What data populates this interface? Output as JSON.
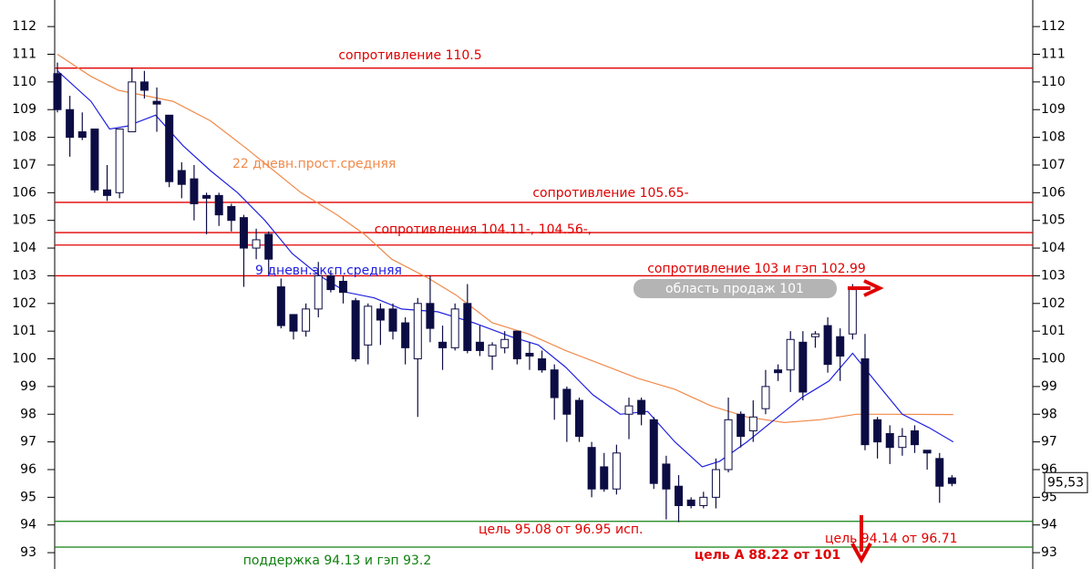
{
  "chart_data": {
    "type": "candlestick",
    "ylim": [
      92.41,
      112.63
    ],
    "xlim": [
      -0.22,
      78.5
    ],
    "yticks": [
      93,
      94,
      95,
      96,
      97,
      98,
      99,
      100,
      101,
      102,
      103,
      104,
      105,
      106,
      107,
      108,
      109,
      110,
      111,
      112
    ],
    "up_color": "#ffffff",
    "down_color": "#0c0c44",
    "open": [
      110.3,
      109.0,
      108.2,
      108.3,
      106.1,
      106.0,
      108.2,
      110.0,
      109.3,
      108.8,
      106.8,
      106.5,
      105.9,
      105.9,
      105.5,
      105.1,
      104.0,
      104.5,
      102.6,
      101.6,
      101.0,
      101.8,
      103.0,
      102.8,
      102.1,
      100.5,
      101.8,
      101.8,
      101.3,
      100.0,
      102.0,
      100.6,
      100.4,
      102.0,
      100.6,
      100.1,
      100.4,
      101.0,
      100.2,
      100.0,
      99.6,
      98.9,
      98.5,
      96.8,
      96.1,
      95.3,
      98.0,
      98.5,
      97.8,
      96.2,
      95.4,
      94.9,
      94.7,
      95.0,
      96.0,
      98.0,
      97.4,
      98.2,
      99.6,
      99.6,
      100.6,
      100.8,
      101.2,
      100.8,
      100.9,
      100.0,
      97.8,
      97.3,
      96.8,
      97.4,
      96.7,
      96.4,
      95.7
    ],
    "high": [
      110.7,
      109.5,
      108.9,
      108.3,
      107.0,
      108.3,
      110.5,
      110.4,
      109.8,
      108.8,
      107.1,
      107.0,
      106.0,
      106.0,
      105.6,
      105.2,
      104.7,
      104.6,
      102.9,
      101.6,
      102.0,
      103.5,
      103.2,
      103.0,
      102.2,
      102.0,
      102.0,
      102.0,
      101.5,
      102.2,
      103.0,
      101.2,
      102.0,
      102.7,
      101.2,
      100.6,
      101.0,
      101.0,
      100.6,
      100.3,
      99.8,
      99.0,
      98.6,
      97.0,
      96.6,
      96.9,
      98.6,
      98.6,
      97.9,
      96.5,
      95.8,
      95.0,
      95.2,
      96.4,
      98.6,
      98.1,
      98.5,
      99.6,
      99.8,
      101.0,
      101.0,
      101.0,
      101.5,
      101.1,
      102.7,
      100.9,
      97.9,
      97.6,
      97.5,
      97.6,
      96.7,
      96.6,
      95.8
    ],
    "low": [
      108.9,
      107.3,
      107.9,
      106.0,
      105.7,
      105.8,
      108.2,
      109.4,
      108.2,
      106.2,
      105.8,
      105.0,
      104.5,
      104.8,
      104.6,
      102.6,
      103.6,
      103.0,
      101.1,
      100.7,
      100.8,
      101.5,
      102.4,
      102.0,
      99.9,
      99.8,
      100.5,
      100.7,
      99.8,
      97.9,
      100.6,
      99.6,
      100.3,
      100.2,
      100.1,
      99.6,
      100.2,
      99.8,
      99.6,
      99.5,
      97.8,
      97.0,
      97.0,
      95.0,
      95.2,
      95.1,
      97.1,
      97.6,
      95.3,
      94.2,
      94.1,
      94.6,
      94.6,
      94.6,
      95.9,
      96.8,
      97.0,
      98.0,
      99.2,
      98.8,
      98.5,
      100.4,
      99.5,
      99.2,
      100.7,
      96.7,
      96.4,
      96.2,
      96.5,
      96.6,
      96.0,
      94.8,
      95.4
    ],
    "close": [
      109.0,
      108.0,
      108.0,
      106.1,
      105.9,
      108.3,
      110.0,
      109.7,
      109.2,
      106.4,
      106.3,
      105.6,
      105.8,
      105.2,
      105.0,
      104.0,
      104.3,
      103.6,
      101.2,
      101.0,
      101.8,
      103.0,
      102.5,
      102.4,
      100.0,
      101.9,
      101.4,
      101.0,
      100.4,
      102.0,
      101.1,
      100.4,
      101.8,
      100.3,
      100.3,
      100.5,
      100.7,
      100.0,
      100.1,
      99.6,
      98.6,
      98.0,
      97.2,
      95.3,
      95.3,
      96.6,
      98.3,
      98.0,
      95.5,
      95.3,
      94.7,
      94.7,
      95.0,
      96.0,
      97.8,
      97.2,
      97.9,
      99.0,
      99.5,
      100.7,
      98.8,
      100.9,
      99.8,
      100.1,
      102.5,
      96.9,
      97.0,
      96.8,
      97.2,
      96.9,
      96.6,
      95.4,
      95.5
    ],
    "series": [
      {
        "name": "22 дневн.прост.средняя",
        "color": "#f08a4b",
        "x": [
          0,
          2.7,
          4.9,
          7.1,
          9.3,
          12.3,
          15.2,
          17.4,
          19.6,
          22.5,
          24.7,
          26.9,
          29.9,
          32.1,
          35,
          37.9,
          40.9,
          43.8,
          46.7,
          49.7,
          52.6,
          55.5,
          58.5,
          61.4,
          64.3,
          67.3,
          72.1
        ],
        "values": [
          111.0,
          110.2,
          109.7,
          109.5,
          109.3,
          108.6,
          107.6,
          106.8,
          106.0,
          105.2,
          104.5,
          103.6,
          102.9,
          102.3,
          101.3,
          100.9,
          100.3,
          99.8,
          99.3,
          98.9,
          98.3,
          97.9,
          97.7,
          97.8,
          98.0,
          98.0,
          97.99
        ]
      },
      {
        "name": "9 дневн.эксп.средняя",
        "color": "#2020e0",
        "x": [
          0,
          2.7,
          4.2,
          5.6,
          7.9,
          10.1,
          12.3,
          14.5,
          16.7,
          18.9,
          21.1,
          23.3,
          25.5,
          27.7,
          30.6,
          33.5,
          36.5,
          38.7,
          40.9,
          43.1,
          45.3,
          47.5,
          49.7,
          51.9,
          53.3,
          55.5,
          57.7,
          59.9,
          62.1,
          64,
          65.8,
          68,
          70.2,
          72.1
        ],
        "values": [
          110.4,
          109.3,
          108.3,
          108.4,
          108.8,
          107.7,
          106.8,
          106.0,
          105.0,
          103.8,
          103.0,
          102.4,
          102.2,
          101.8,
          101.7,
          101.3,
          100.8,
          100.5,
          99.7,
          98.7,
          98.0,
          98.1,
          97.0,
          96.1,
          96.3,
          97.0,
          97.8,
          98.6,
          99.2,
          100.2,
          99.2,
          98.0,
          97.5,
          97.0
        ]
      }
    ],
    "lines": [
      {
        "value": 110.5,
        "color": "#e00000"
      },
      {
        "value": 105.65,
        "color": "#e00000"
      },
      {
        "value": 104.56,
        "color": "#e00000"
      },
      {
        "value": 104.11,
        "color": "#e00000"
      },
      {
        "value": 103,
        "color": "#e00000"
      },
      {
        "value": 94.13,
        "color": "#108010"
      },
      {
        "value": 93.2,
        "color": "#108010"
      }
    ],
    "annotations": [
      "сопротивление  110.5",
      "сопротивление  105.65-",
      "сопротивления 104.11-, 104.56-,",
      "сопротивление 103 и гэп 102.99",
      "область продаж 101",
      "цель  95.08 от 96.95 исп.",
      "цель 94.14 от 96.71",
      "поддержка 94.13 и гэп 93.2",
      "цель А  88.22 от 101"
    ],
    "last_price": {
      "value": 95.53,
      "label": "95,53"
    }
  }
}
